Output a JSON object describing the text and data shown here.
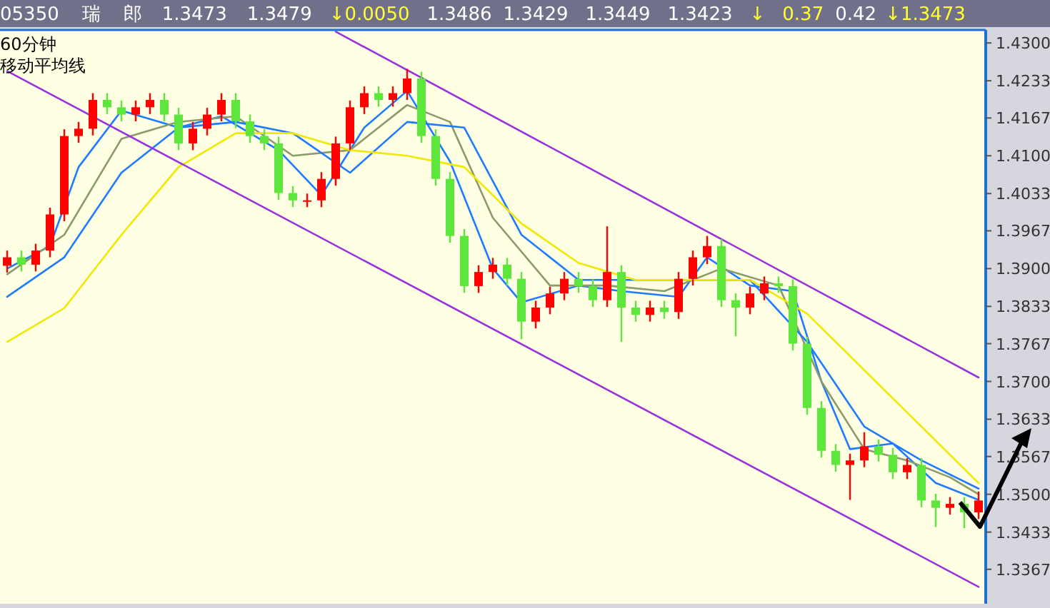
{
  "chart_data": {
    "type": "candlestick",
    "title": "05350",
    "subtitle": "60分钟",
    "annotations": [
      "瑞",
      "郎",
      "1.3473",
      "1.3479",
      "↓0.0050",
      "1.3486",
      "1.3429",
      "1.3449",
      "1.3423",
      "↓",
      "0.37",
      "0.42",
      "↓1.3473",
      "移动平均线"
    ],
    "categories": [
      null,
      null,
      null,
      null,
      null,
      null,
      null,
      null,
      null,
      null,
      null,
      null,
      null,
      null,
      null,
      null,
      null,
      null,
      null,
      null,
      null,
      null,
      null,
      null,
      null,
      null,
      null,
      null,
      null,
      null,
      null,
      null,
      null,
      null,
      null,
      null,
      null,
      null,
      null,
      null,
      null,
      null,
      null,
      null,
      null,
      null,
      null,
      null,
      null,
      null,
      null,
      null,
      null,
      null,
      null,
      null,
      null,
      null,
      null,
      null,
      null,
      null,
      null,
      null,
      null,
      null,
      null,
      null,
      null
    ],
    "ohlc": [
      [
        1.3905,
        1.3932,
        1.3893,
        1.392
      ],
      [
        1.392,
        1.3932,
        1.3895,
        1.3907
      ],
      [
        1.3907,
        1.3944,
        1.3895,
        1.3932
      ],
      [
        1.3932,
        1.4008,
        1.392,
        1.3996
      ],
      [
        1.3996,
        1.4147,
        1.3984,
        1.4135
      ],
      [
        1.4135,
        1.416,
        1.4123,
        1.4148
      ],
      [
        1.4148,
        1.4211,
        1.4136,
        1.4199
      ],
      [
        1.4199,
        1.4211,
        1.4174,
        1.4186
      ],
      [
        1.4186,
        1.4198,
        1.4161,
        1.4173
      ],
      [
        1.4173,
        1.4198,
        1.4161,
        1.4186
      ],
      [
        1.4186,
        1.4211,
        1.4174,
        1.4199
      ],
      [
        1.4199,
        1.4211,
        1.4161,
        1.4173
      ],
      [
        1.4173,
        1.4185,
        1.411,
        1.4122
      ],
      [
        1.4122,
        1.416,
        1.411,
        1.4148
      ],
      [
        1.4148,
        1.4185,
        1.4136,
        1.4173
      ],
      [
        1.4173,
        1.4211,
        1.4161,
        1.4199
      ],
      [
        1.4199,
        1.4211,
        1.4149,
        1.4161
      ],
      [
        1.4161,
        1.4173,
        1.4123,
        1.4135
      ],
      [
        1.4135,
        1.4147,
        1.411,
        1.4122
      ],
      [
        1.4122,
        1.4134,
        1.4022,
        1.4034
      ],
      [
        1.4034,
        1.4046,
        1.4009,
        1.4021
      ],
      [
        1.4021,
        1.4033,
        1.4009,
        1.4021
      ],
      [
        1.4021,
        1.4071,
        1.4009,
        1.4059
      ],
      [
        1.4059,
        1.4134,
        1.4047,
        1.4122
      ],
      [
        1.4122,
        1.4198,
        1.411,
        1.4186
      ],
      [
        1.4186,
        1.4223,
        1.4174,
        1.4211
      ],
      [
        1.4211,
        1.4223,
        1.4187,
        1.4199
      ],
      [
        1.4199,
        1.4223,
        1.4187,
        1.4211
      ],
      [
        1.4211,
        1.4254,
        1.4199,
        1.4237
      ],
      [
        1.4237,
        1.4249,
        1.4123,
        1.4135
      ],
      [
        1.4135,
        1.4147,
        1.4047,
        1.4059
      ],
      [
        1.4059,
        1.4071,
        1.3946,
        1.3958
      ],
      [
        1.3958,
        1.397,
        1.3857,
        1.3869
      ],
      [
        1.3869,
        1.3906,
        1.3857,
        1.3894
      ],
      [
        1.3894,
        1.3919,
        1.3882,
        1.3907
      ],
      [
        1.3907,
        1.3919,
        1.387,
        1.3882
      ],
      [
        1.3882,
        1.3894,
        1.3775,
        1.3806
      ],
      [
        1.3806,
        1.3843,
        1.3794,
        1.3831
      ],
      [
        1.3831,
        1.3868,
        1.3819,
        1.3856
      ],
      [
        1.3856,
        1.3894,
        1.3844,
        1.3882
      ],
      [
        1.3882,
        1.3894,
        1.3857,
        1.3869
      ],
      [
        1.3869,
        1.3881,
        1.3832,
        1.3844
      ],
      [
        1.3844,
        1.3975,
        1.3832,
        1.3894
      ],
      [
        1.3894,
        1.3906,
        1.377,
        1.3831
      ],
      [
        1.3831,
        1.3843,
        1.3806,
        1.3818
      ],
      [
        1.3818,
        1.3843,
        1.3806,
        1.3831
      ],
      [
        1.3831,
        1.3843,
        1.3811,
        1.3823
      ],
      [
        1.3823,
        1.3894,
        1.3811,
        1.3882
      ],
      [
        1.3882,
        1.3932,
        1.387,
        1.392
      ],
      [
        1.392,
        1.3958,
        1.3908,
        1.394
      ],
      [
        1.394,
        1.3952,
        1.3832,
        1.3844
      ],
      [
        1.3844,
        1.3856,
        1.378,
        1.3831
      ],
      [
        1.3831,
        1.3868,
        1.3819,
        1.3856
      ],
      [
        1.3856,
        1.3886,
        1.3844,
        1.3874
      ],
      [
        1.3874,
        1.3886,
        1.3857,
        1.3869
      ],
      [
        1.3869,
        1.3881,
        1.3755,
        1.3767
      ],
      [
        1.3767,
        1.3779,
        1.3641,
        1.3653
      ],
      [
        1.3653,
        1.3665,
        1.3565,
        1.3577
      ],
      [
        1.3577,
        1.3589,
        1.354,
        1.3552
      ],
      [
        1.3552,
        1.3572,
        1.349,
        1.356
      ],
      [
        1.356,
        1.361,
        1.3548,
        1.3585
      ],
      [
        1.3585,
        1.3597,
        1.3558,
        1.357
      ],
      [
        1.357,
        1.3582,
        1.3527,
        1.3539
      ],
      [
        1.3539,
        1.3564,
        1.3527,
        1.3552
      ],
      [
        1.3552,
        1.3564,
        1.3477,
        1.3489
      ],
      [
        1.3489,
        1.3501,
        1.3442,
        1.3476
      ],
      [
        1.3476,
        1.3495,
        1.3464,
        1.3483
      ],
      [
        1.3483,
        1.3495,
        1.344,
        1.3468
      ],
      [
        1.3468,
        1.3505,
        1.3456,
        1.3489
      ]
    ],
    "series": [
      {
        "type": "line",
        "color": "#1e7bff",
        "values": [
          1.39,
          null,
          null,
          1.394,
          null,
          1.408,
          null,
          null,
          1.418,
          null,
          null,
          null,
          1.415,
          null,
          null,
          1.417,
          null,
          null,
          null,
          1.411,
          null,
          null,
          1.403,
          null,
          null,
          1.415,
          null,
          null,
          1.4215,
          null,
          null,
          1.409,
          null,
          null,
          1.39,
          null,
          1.384,
          null,
          null,
          null,
          1.387,
          null,
          null,
          1.386,
          null,
          null,
          null,
          1.385,
          null,
          1.392,
          null,
          null,
          1.387,
          null,
          null,
          1.386,
          null,
          1.37,
          null,
          1.358,
          null,
          null,
          1.359,
          null,
          null,
          1.352,
          null,
          null,
          1.349
        ]
      },
      {
        "type": "line",
        "color": "#8a9a6a",
        "values": [
          1.389,
          null,
          null,
          null,
          1.396,
          null,
          null,
          null,
          1.413,
          null,
          null,
          null,
          1.416,
          null,
          null,
          null,
          1.417,
          null,
          null,
          null,
          1.41,
          null,
          null,
          null,
          1.411,
          null,
          null,
          null,
          1.419,
          null,
          null,
          1.416,
          null,
          null,
          1.399,
          null,
          null,
          null,
          1.387,
          null,
          null,
          null,
          1.387,
          null,
          null,
          null,
          1.386,
          null,
          null,
          null,
          1.39,
          null,
          null,
          null,
          1.387,
          null,
          null,
          1.37,
          null,
          null,
          1.358,
          null,
          null,
          1.356,
          null,
          null,
          1.353,
          null,
          1.35
        ]
      },
      {
        "type": "line",
        "color": "#1e7bff",
        "values": [
          1.385,
          null,
          null,
          null,
          1.392,
          null,
          null,
          null,
          1.407,
          null,
          null,
          null,
          1.415,
          null,
          null,
          null,
          1.416,
          null,
          null,
          null,
          1.414,
          null,
          null,
          null,
          1.407,
          null,
          null,
          null,
          1.416,
          null,
          null,
          null,
          1.415,
          null,
          null,
          null,
          1.396,
          null,
          null,
          null,
          1.388,
          null,
          null,
          null,
          1.388,
          null,
          null,
          null,
          1.388,
          null,
          null,
          null,
          1.388,
          null,
          null,
          null,
          1.377,
          null,
          null,
          null,
          1.362,
          null,
          null,
          null,
          1.356,
          null,
          null,
          null,
          1.351
        ]
      },
      {
        "type": "line",
        "color": "#f0e800",
        "values": [
          1.377,
          null,
          null,
          null,
          1.383,
          null,
          null,
          null,
          1.396,
          null,
          null,
          null,
          1.408,
          null,
          null,
          null,
          1.414,
          null,
          null,
          null,
          1.414,
          null,
          null,
          null,
          1.411,
          null,
          null,
          null,
          1.41,
          null,
          null,
          null,
          1.408,
          null,
          null,
          null,
          1.398,
          null,
          null,
          null,
          1.391,
          null,
          null,
          null,
          1.388,
          null,
          null,
          null,
          1.388,
          null,
          null,
          null,
          1.388,
          null,
          null,
          null,
          1.382,
          null,
          null,
          null,
          1.372,
          null,
          null,
          null,
          1.362,
          null,
          null,
          null,
          1.352
        ]
      },
      {
        "type": "line",
        "color": "#9933dd",
        "values": [
          null,
          null,
          null,
          null,
          null,
          null,
          null,
          null,
          null,
          null,
          null,
          null,
          null,
          null,
          null,
          null,
          null,
          null,
          null,
          null,
          null,
          null,
          null,
          1.432,
          null,
          null,
          null,
          null,
          null,
          null,
          null,
          null,
          null,
          null,
          null,
          null,
          null,
          null,
          null,
          null,
          null,
          null,
          null,
          null,
          null,
          null,
          null,
          null,
          null,
          null,
          null,
          null,
          null,
          null,
          null,
          null,
          null,
          null,
          null,
          null,
          null,
          null,
          null,
          null,
          null,
          null,
          null,
          null,
          1.3707
        ]
      },
      {
        "type": "line",
        "color": "#9933dd",
        "values": [
          1.425,
          null,
          null,
          null,
          null,
          null,
          null,
          null,
          null,
          null,
          null,
          null,
          null,
          null,
          null,
          null,
          null,
          null,
          null,
          null,
          null,
          null,
          null,
          null,
          null,
          null,
          null,
          null,
          null,
          null,
          null,
          null,
          null,
          null,
          null,
          null,
          null,
          null,
          null,
          null,
          null,
          null,
          null,
          null,
          null,
          null,
          null,
          null,
          null,
          null,
          null,
          null,
          null,
          null,
          null,
          null,
          null,
          null,
          null,
          null,
          null,
          null,
          null,
          null,
          null,
          null,
          null,
          null,
          1.3336
        ]
      }
    ],
    "ylim": [
      1.3306,
      1.4323
    ],
    "yticks": [
      {
        "value": 1.43,
        "label": "1.4300"
      },
      {
        "value": 1.4233,
        "label": "1.4233"
      },
      {
        "value": 1.4167,
        "label": "1.4167"
      },
      {
        "value": 1.41,
        "label": "1.4100"
      },
      {
        "value": 1.4033,
        "label": "1.4033"
      },
      {
        "value": 1.3967,
        "label": "1.3967"
      },
      {
        "value": 1.39,
        "label": "1.3900"
      },
      {
        "value": 1.3833,
        "label": "1.3833"
      },
      {
        "value": 1.3767,
        "label": "1.3767"
      },
      {
        "value": 1.37,
        "label": "1.3700"
      },
      {
        "value": 1.3633,
        "label": "1.3633"
      },
      {
        "value": 1.3567,
        "label": "1.3567"
      },
      {
        "value": 1.35,
        "label": "1.3500"
      },
      {
        "value": 1.3433,
        "label": "1.3433"
      },
      {
        "value": 1.3367,
        "label": "1.3367"
      }
    ],
    "tick_labels": "y",
    "grid": false
  }
}
